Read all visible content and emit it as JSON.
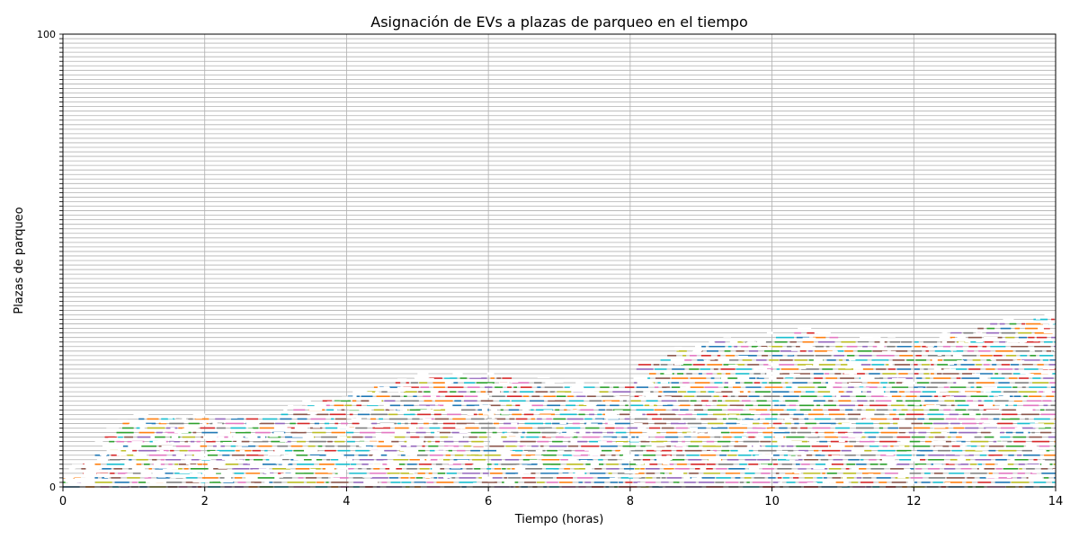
{
  "chart_data": {
    "type": "gantt",
    "title": "Asignación de EVs a plazas de parqueo en el tiempo",
    "xlabel": "Tiempo (horas)",
    "ylabel": "Plazas de parqueo",
    "xlim": [
      0,
      14
    ],
    "ylim": [
      0,
      100
    ],
    "xticks": [
      0,
      2,
      4,
      6,
      8,
      10,
      12,
      14
    ],
    "yticks_visible_bottom": [
      "0"
    ],
    "yticks_visible_top": [
      "100"
    ],
    "grid": true,
    "occupied_slot_upper_bound_by_time": [
      {
        "t": 0.0,
        "max_slot": 2
      },
      {
        "t": 0.25,
        "max_slot": 5
      },
      {
        "t": 0.5,
        "max_slot": 11
      },
      {
        "t": 0.75,
        "max_slot": 14
      },
      {
        "t": 1.0,
        "max_slot": 15
      },
      {
        "t": 1.5,
        "max_slot": 15
      },
      {
        "t": 2.0,
        "max_slot": 15
      },
      {
        "t": 2.5,
        "max_slot": 15
      },
      {
        "t": 3.0,
        "max_slot": 16
      },
      {
        "t": 3.5,
        "max_slot": 19
      },
      {
        "t": 4.0,
        "max_slot": 20
      },
      {
        "t": 4.5,
        "max_slot": 23
      },
      {
        "t": 5.0,
        "max_slot": 24
      },
      {
        "t": 5.5,
        "max_slot": 24
      },
      {
        "t": 6.0,
        "max_slot": 24
      },
      {
        "t": 6.5,
        "max_slot": 24
      },
      {
        "t": 7.0,
        "max_slot": 23
      },
      {
        "t": 7.5,
        "max_slot": 22
      },
      {
        "t": 8.0,
        "max_slot": 22
      },
      {
        "t": 8.1,
        "max_slot": 27
      },
      {
        "t": 8.5,
        "max_slot": 30
      },
      {
        "t": 9.0,
        "max_slot": 32
      },
      {
        "t": 9.5,
        "max_slot": 32
      },
      {
        "t": 10.0,
        "max_slot": 33
      },
      {
        "t": 10.5,
        "max_slot": 35
      },
      {
        "t": 11.0,
        "max_slot": 33
      },
      {
        "t": 11.5,
        "max_slot": 32
      },
      {
        "t": 12.0,
        "max_slot": 32
      },
      {
        "t": 12.5,
        "max_slot": 34
      },
      {
        "t": 13.0,
        "max_slot": 36
      },
      {
        "t": 13.5,
        "max_slot": 37
      },
      {
        "t": 14.0,
        "max_slot": 37
      }
    ],
    "palette": [
      "#1f77b4",
      "#ff7f0e",
      "#2ca02c",
      "#d62728",
      "#9467bd",
      "#8c564b",
      "#e377c2",
      "#7f7f7f",
      "#bcbd22",
      "#17becf"
    ]
  }
}
